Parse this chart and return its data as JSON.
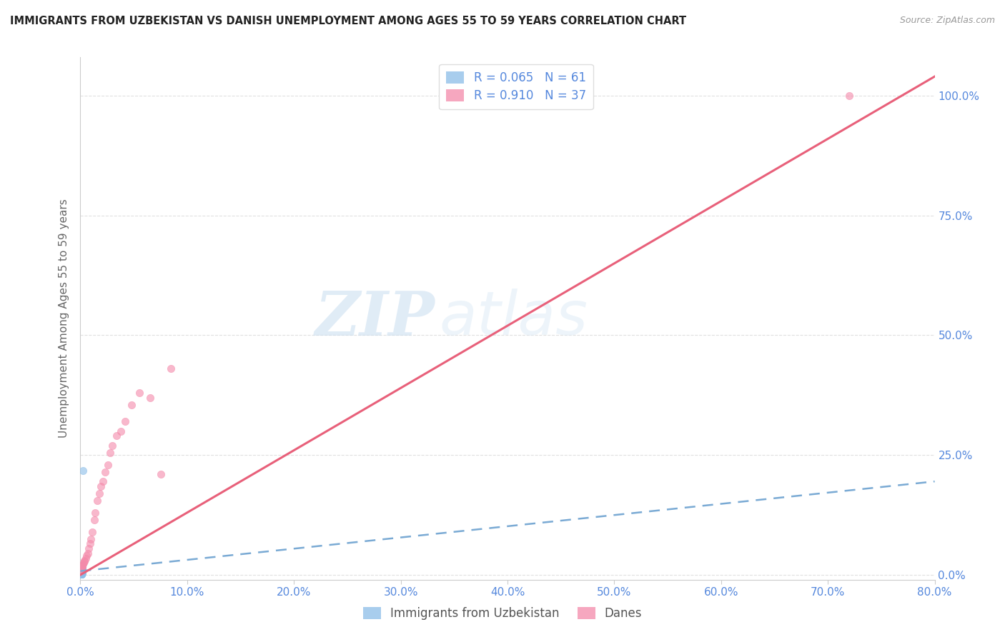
{
  "title": "IMMIGRANTS FROM UZBEKISTAN VS DANISH UNEMPLOYMENT AMONG AGES 55 TO 59 YEARS CORRELATION CHART",
  "source": "Source: ZipAtlas.com",
  "ylabel": "Unemployment Among Ages 55 to 59 years",
  "watermark_zip": "ZIP",
  "watermark_atlas": "atlas",
  "xlim": [
    0,
    0.8
  ],
  "ylim": [
    -0.01,
    1.08
  ],
  "x_tick_vals": [
    0.0,
    0.1,
    0.2,
    0.3,
    0.4,
    0.5,
    0.6,
    0.7,
    0.8
  ],
  "y_tick_vals": [
    0.0,
    0.25,
    0.5,
    0.75,
    1.0
  ],
  "blue_label_r": "R = 0.065",
  "blue_label_n": "N = 61",
  "pink_label_r": "R = 0.910",
  "pink_label_n": "N = 37",
  "legend_bottom_blue": "Immigrants from Uzbekistan",
  "legend_bottom_pink": "Danes",
  "blue_color": "#8bbde8",
  "pink_color": "#f48aaa",
  "blue_line_color": "#7aaad4",
  "pink_line_color": "#e8607a",
  "blue_scatter_x": [
    0.0012,
    0.0008,
    0.001,
    0.0015,
    0.0005,
    0.0007,
    0.0009,
    0.0011,
    0.0013,
    0.0006,
    0.0008,
    0.001,
    0.0012,
    0.0014,
    0.0016,
    0.0005,
    0.0007,
    0.0009,
    0.0011,
    0.0013,
    0.0015,
    0.0017,
    0.0006,
    0.0008,
    0.001,
    0.0012,
    0.0014,
    0.0004,
    0.0006,
    0.0008,
    0.001,
    0.0012,
    0.0014,
    0.0003,
    0.0005,
    0.0007,
    0.0009,
    0.0011,
    0.0013,
    0.0015,
    0.0004,
    0.0006,
    0.0008,
    0.001,
    0.0012,
    0.0003,
    0.0005,
    0.0007,
    0.0009,
    0.0011,
    0.0013,
    0.0003,
    0.0005,
    0.0007,
    0.0009,
    0.0011,
    0.0003,
    0.0005,
    0.0007,
    0.0009,
    0.0025
  ],
  "blue_scatter_y": [
    0.02,
    0.02,
    0.018,
    0.018,
    0.016,
    0.016,
    0.015,
    0.015,
    0.014,
    0.014,
    0.013,
    0.013,
    0.012,
    0.012,
    0.011,
    0.011,
    0.01,
    0.01,
    0.009,
    0.009,
    0.008,
    0.008,
    0.008,
    0.007,
    0.007,
    0.007,
    0.006,
    0.006,
    0.006,
    0.005,
    0.005,
    0.005,
    0.005,
    0.004,
    0.004,
    0.004,
    0.004,
    0.003,
    0.003,
    0.003,
    0.003,
    0.003,
    0.003,
    0.002,
    0.002,
    0.002,
    0.002,
    0.002,
    0.002,
    0.002,
    0.002,
    0.002,
    0.001,
    0.001,
    0.001,
    0.001,
    0.001,
    0.001,
    0.001,
    0.001,
    0.218
  ],
  "pink_scatter_x": [
    0.0005,
    0.0008,
    0.001,
    0.0012,
    0.0015,
    0.0018,
    0.002,
    0.0025,
    0.003,
    0.0035,
    0.004,
    0.005,
    0.006,
    0.007,
    0.008,
    0.009,
    0.01,
    0.011,
    0.013,
    0.014,
    0.016,
    0.0175,
    0.019,
    0.021,
    0.023,
    0.026,
    0.028,
    0.03,
    0.034,
    0.038,
    0.042,
    0.048,
    0.055,
    0.065,
    0.075,
    0.085,
    0.72
  ],
  "pink_scatter_y": [
    0.01,
    0.012,
    0.013,
    0.015,
    0.016,
    0.018,
    0.02,
    0.022,
    0.025,
    0.028,
    0.03,
    0.035,
    0.04,
    0.045,
    0.055,
    0.065,
    0.075,
    0.09,
    0.115,
    0.13,
    0.155,
    0.17,
    0.185,
    0.195,
    0.215,
    0.23,
    0.255,
    0.27,
    0.29,
    0.3,
    0.32,
    0.355,
    0.38,
    0.37,
    0.21,
    0.43,
    1.0
  ],
  "blue_line_x0": 0.0,
  "blue_line_y0": 0.008,
  "blue_line_x1": 0.8,
  "blue_line_y1": 0.195,
  "pink_line_x0": 0.0,
  "pink_line_y0": 0.0,
  "pink_line_x1": 0.8,
  "pink_line_y1": 1.04,
  "scatter_alpha": 0.6,
  "scatter_size": 55,
  "background_color": "#ffffff",
  "grid_color": "#e0e0e0",
  "title_color": "#222222",
  "axis_label_color": "#5588dd",
  "ylabel_color": "#666666"
}
